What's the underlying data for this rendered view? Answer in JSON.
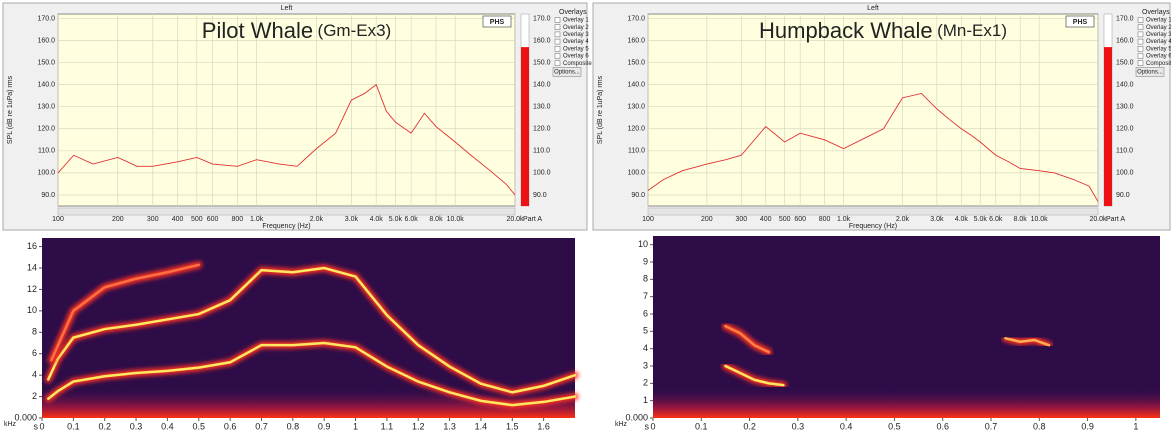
{
  "chart_data": [
    {
      "type": "line",
      "header": "Left",
      "title": "Pilot Whale",
      "subtitle": "(Gm-Ex3)",
      "badge": "PHS",
      "xlabel": "Frequency (Hz)",
      "ylabel": "SPL (dB re 1uPa) rms",
      "log_x": true,
      "grid": true,
      "xlim": [
        100,
        20000
      ],
      "xticks": [
        100,
        200,
        300,
        400,
        500,
        600,
        800,
        {
          "value": 1000,
          "label": "1.0k"
        },
        {
          "value": 2000,
          "label": "2.0k"
        },
        {
          "value": 3000,
          "label": "3.0k"
        },
        {
          "value": 4000,
          "label": "4.0k"
        },
        {
          "value": 5000,
          "label": "5.0k"
        },
        {
          "value": 6000,
          "label": "6.0k"
        },
        {
          "value": 8000,
          "label": "8.0k"
        },
        {
          "value": 10000,
          "label": "10.0k"
        },
        {
          "value": 20000,
          "label": "20.0k"
        }
      ],
      "ylim": [
        85,
        172
      ],
      "yticks": [
        {
          "value": 90,
          "label": "90.0"
        },
        {
          "value": 100,
          "label": "100.0"
        },
        {
          "value": 110,
          "label": "110.0"
        },
        {
          "value": 120,
          "label": "120.0"
        },
        {
          "value": 130,
          "label": "130.0"
        },
        {
          "value": 140,
          "label": "140.0"
        },
        {
          "value": 150,
          "label": "150.0"
        },
        {
          "value": 160,
          "label": "160.0"
        },
        {
          "value": 170,
          "label": "170.0"
        }
      ],
      "x": [
        100,
        120,
        150,
        200,
        250,
        300,
        400,
        500,
        600,
        800,
        1000,
        1300,
        1600,
        2000,
        2500,
        3000,
        3500,
        4000,
        4500,
        5000,
        6000,
        7000,
        8000,
        10000,
        12000,
        15000,
        18000,
        20000
      ],
      "series": [
        {
          "color": "#e03030",
          "values": [
            100,
            108,
            104,
            107,
            103,
            103,
            105,
            107,
            104,
            103,
            106,
            104,
            103,
            111,
            118,
            133,
            136,
            140,
            128,
            123,
            118,
            127,
            121,
            114,
            108,
            101,
            95,
            90
          ]
        }
      ],
      "meter_value": 157,
      "meter_color": "#ee1111",
      "meter_label": "Part A",
      "legend": {
        "title": "Overlays",
        "button": "Options...",
        "items": [
          {
            "label": "Overlay 1",
            "color": "#2ca02c"
          },
          {
            "label": "Overlay 2",
            "color": "#20a0c0"
          },
          {
            "label": "Overlay 3",
            "color": "#8040c0"
          },
          {
            "label": "Overlay 4",
            "color": "#d040d0"
          },
          {
            "label": "Overlay 5",
            "color": "#e08020"
          },
          {
            "label": "Overlay 6",
            "color": "#d04040"
          },
          {
            "label": "Composite",
            "color": "#000000"
          }
        ]
      }
    },
    {
      "type": "spectrogram",
      "xlabel": "s",
      "ylabel": "kHz",
      "xlim": [
        0,
        1.7
      ],
      "ylim": [
        0,
        16.8
      ],
      "xticks": [
        0,
        0.1,
        0.2,
        0.3,
        0.4,
        0.5,
        0.6,
        0.7,
        0.8,
        0.9,
        1,
        1.1,
        1.2,
        1.3,
        1.4,
        1.5,
        1.6
      ],
      "yticks": [
        {
          "value": 0,
          "label": "0.000"
        },
        2,
        4,
        6,
        8,
        10,
        12,
        14,
        16
      ],
      "series": [
        {
          "color": "#ffe860",
          "x": [
            0.02,
            0.05,
            0.1,
            0.2,
            0.3,
            0.4,
            0.5,
            0.6,
            0.7,
            0.8,
            0.9,
            1.0,
            1.1,
            1.2,
            1.3,
            1.4,
            1.5,
            1.6,
            1.7
          ],
          "values": [
            1.8,
            2.5,
            3.4,
            3.9,
            4.2,
            4.4,
            4.7,
            5.2,
            6.8,
            6.8,
            7.0,
            6.6,
            4.8,
            3.4,
            2.4,
            1.6,
            1.2,
            1.5,
            2.0
          ]
        },
        {
          "color": "#ffe860",
          "x": [
            0.02,
            0.05,
            0.1,
            0.2,
            0.3,
            0.4,
            0.5,
            0.6,
            0.7,
            0.8,
            0.9,
            1.0,
            1.1,
            1.2,
            1.3,
            1.4,
            1.5,
            1.6,
            1.7
          ],
          "values": [
            3.6,
            5.5,
            7.5,
            8.3,
            8.7,
            9.2,
            9.7,
            11,
            13.8,
            13.6,
            14,
            13.2,
            9.6,
            6.8,
            4.8,
            3.2,
            2.4,
            3,
            4
          ]
        },
        {
          "color": "#ff7040",
          "x": [
            0.03,
            0.1,
            0.2,
            0.3,
            0.4,
            0.5
          ],
          "values": [
            5.4,
            10,
            12.2,
            13,
            13.6,
            14.3
          ]
        }
      ]
    },
    {
      "type": "line",
      "header": "Left",
      "title": "Humpback Whale",
      "subtitle": "(Mn-Ex1)",
      "badge": "PHS",
      "xlabel": "Frequency (Hz)",
      "ylabel": "SPL (dB re 1uPa) rms",
      "log_x": true,
      "grid": true,
      "xlim": [
        100,
        20000
      ],
      "xticks": [
        100,
        200,
        300,
        400,
        500,
        600,
        800,
        {
          "value": 1000,
          "label": "1.0k"
        },
        {
          "value": 2000,
          "label": "2.0k"
        },
        {
          "value": 3000,
          "label": "3.0k"
        },
        {
          "value": 4000,
          "label": "4.0k"
        },
        {
          "value": 5000,
          "label": "5.0k"
        },
        {
          "value": 6000,
          "label": "6.0k"
        },
        {
          "value": 8000,
          "label": "8.0k"
        },
        {
          "value": 10000,
          "label": "10.0k"
        },
        {
          "value": 20000,
          "label": "20.0k"
        }
      ],
      "ylim": [
        85,
        172
      ],
      "yticks": [
        {
          "value": 90,
          "label": "90.0"
        },
        {
          "value": 100,
          "label": "100.0"
        },
        {
          "value": 110,
          "label": "110.0"
        },
        {
          "value": 120,
          "label": "120.0"
        },
        {
          "value": 130,
          "label": "130.0"
        },
        {
          "value": 140,
          "label": "140.0"
        },
        {
          "value": 150,
          "label": "150.0"
        },
        {
          "value": 160,
          "label": "160.0"
        },
        {
          "value": 170,
          "label": "170.0"
        }
      ],
      "x": [
        100,
        120,
        150,
        200,
        250,
        300,
        400,
        500,
        600,
        800,
        1000,
        1300,
        1600,
        2000,
        2500,
        3000,
        3500,
        4000,
        4500,
        5000,
        6000,
        7000,
        8000,
        10000,
        12000,
        15000,
        18000,
        20000
      ],
      "series": [
        {
          "color": "#e03030",
          "values": [
            92,
            97,
            101,
            104,
            106,
            108,
            121,
            114,
            118,
            115,
            111,
            116,
            120,
            134,
            136,
            129,
            124,
            120,
            117,
            114,
            108,
            105,
            102,
            101,
            100,
            97,
            94,
            87
          ]
        }
      ],
      "meter_value": 157,
      "meter_color": "#ee1111",
      "meter_label": "Part A",
      "legend": {
        "title": "Overlays",
        "button": "Options...",
        "items": [
          {
            "label": "Overlay 1",
            "color": "#2ca02c"
          },
          {
            "label": "Overlay 2",
            "color": "#20a0c0"
          },
          {
            "label": "Overlay 3",
            "color": "#8040c0"
          },
          {
            "label": "Overlay 4",
            "color": "#d040d0"
          },
          {
            "label": "Overlay 5",
            "color": "#e08020"
          },
          {
            "label": "Overlay 6",
            "color": "#d04040"
          },
          {
            "label": "Composite",
            "color": "#000000"
          }
        ]
      }
    },
    {
      "type": "spectrogram",
      "xlabel": "s",
      "ylabel": "kHz",
      "xlim": [
        0,
        1.05
      ],
      "ylim": [
        0,
        10.5
      ],
      "xticks": [
        0,
        0.1,
        0.2,
        0.3,
        0.4,
        0.5,
        0.6,
        0.7,
        0.8,
        0.9,
        1
      ],
      "yticks": [
        {
          "value": 0,
          "label": "0.000"
        },
        1,
        2,
        3,
        4,
        5,
        6,
        7,
        8,
        9,
        10
      ],
      "series": [
        {
          "color": "#ffe860",
          "x": [
            0.15,
            0.18,
            0.21,
            0.24,
            0.27
          ],
          "values": [
            3.0,
            2.6,
            2.2,
            2.0,
            1.9
          ]
        },
        {
          "color": "#ff8040",
          "x": [
            0.15,
            0.18,
            0.21,
            0.24
          ],
          "values": [
            5.3,
            4.9,
            4.2,
            3.8
          ]
        },
        {
          "color": "#ffb050",
          "x": [
            0.73,
            0.76,
            0.79,
            0.82
          ],
          "values": [
            4.6,
            4.4,
            4.5,
            4.2
          ]
        }
      ]
    }
  ]
}
